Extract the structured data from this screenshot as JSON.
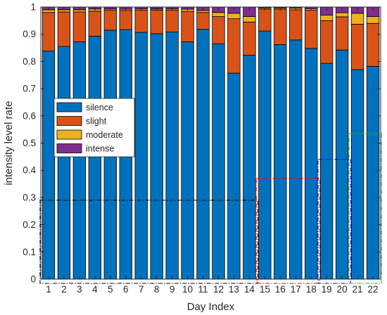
{
  "chart_data": {
    "type": "bar",
    "stacked": true,
    "xlabel": "Day Index",
    "ylabel": "intensity level rate",
    "ylim": [
      0,
      1
    ],
    "yticks": [
      0,
      0.1,
      0.2,
      0.3,
      0.4,
      0.5,
      0.6,
      0.7,
      0.8,
      0.9,
      1
    ],
    "ytick_labels": [
      "0",
      "0.1",
      "0.2",
      "0.3",
      "0.4",
      "0.5",
      "0.6",
      "0.7",
      "0.8",
      "0.9",
      "1"
    ],
    "categories": [
      "1",
      "2",
      "3",
      "4",
      "5",
      "6",
      "7",
      "8",
      "9",
      "10",
      "11",
      "12",
      "13",
      "14",
      "15",
      "16",
      "17",
      "18",
      "19",
      "20",
      "21",
      "22"
    ],
    "legend_position": "left",
    "grid": false,
    "series": [
      {
        "name": "silence",
        "color": "#0072BD",
        "values": [
          0.838,
          0.855,
          0.872,
          0.893,
          0.915,
          0.917,
          0.907,
          0.902,
          0.908,
          0.872,
          0.918,
          0.865,
          0.757,
          0.823,
          0.912,
          0.862,
          0.879,
          0.848,
          0.793,
          0.842,
          0.77,
          0.782
        ]
      },
      {
        "name": "slight",
        "color": "#D95319",
        "values": [
          0.142,
          0.127,
          0.11,
          0.092,
          0.073,
          0.07,
          0.081,
          0.087,
          0.08,
          0.112,
          0.062,
          0.1,
          0.2,
          0.122,
          0.08,
          0.13,
          0.111,
          0.14,
          0.157,
          0.122,
          0.167,
          0.158
        ]
      },
      {
        "name": "moderate",
        "color": "#EDB120",
        "values": [
          0.01,
          0.008,
          0.008,
          0.008,
          0.005,
          0.005,
          0.005,
          0.004,
          0.005,
          0.008,
          0.007,
          0.015,
          0.02,
          0.02,
          0.004,
          0.004,
          0.006,
          0.006,
          0.02,
          0.015,
          0.04,
          0.025
        ]
      },
      {
        "name": "intense",
        "color": "#7E2F8E",
        "values": [
          0.01,
          0.01,
          0.01,
          0.007,
          0.007,
          0.008,
          0.007,
          0.007,
          0.007,
          0.008,
          0.013,
          0.02,
          0.023,
          0.035,
          0.004,
          0.004,
          0.004,
          0.006,
          0.03,
          0.021,
          0.023,
          0.035
        ]
      }
    ],
    "highlight_boxes": [
      {
        "from_day": 1,
        "to_day": 14,
        "top": 0.29,
        "color": "#000000",
        "style": "dash-dot"
      },
      {
        "from_day": 15,
        "to_day": 18,
        "top": 0.37,
        "color": "#FF0000",
        "style": "dash-dot"
      },
      {
        "from_day": 19,
        "to_day": 20,
        "top": 0.44,
        "color": "#0000FF",
        "style": "dash-dot"
      },
      {
        "from_day": 21,
        "to_day": 22,
        "top": 0.535,
        "color": "#00CC00",
        "style": "dash-dot"
      }
    ]
  }
}
